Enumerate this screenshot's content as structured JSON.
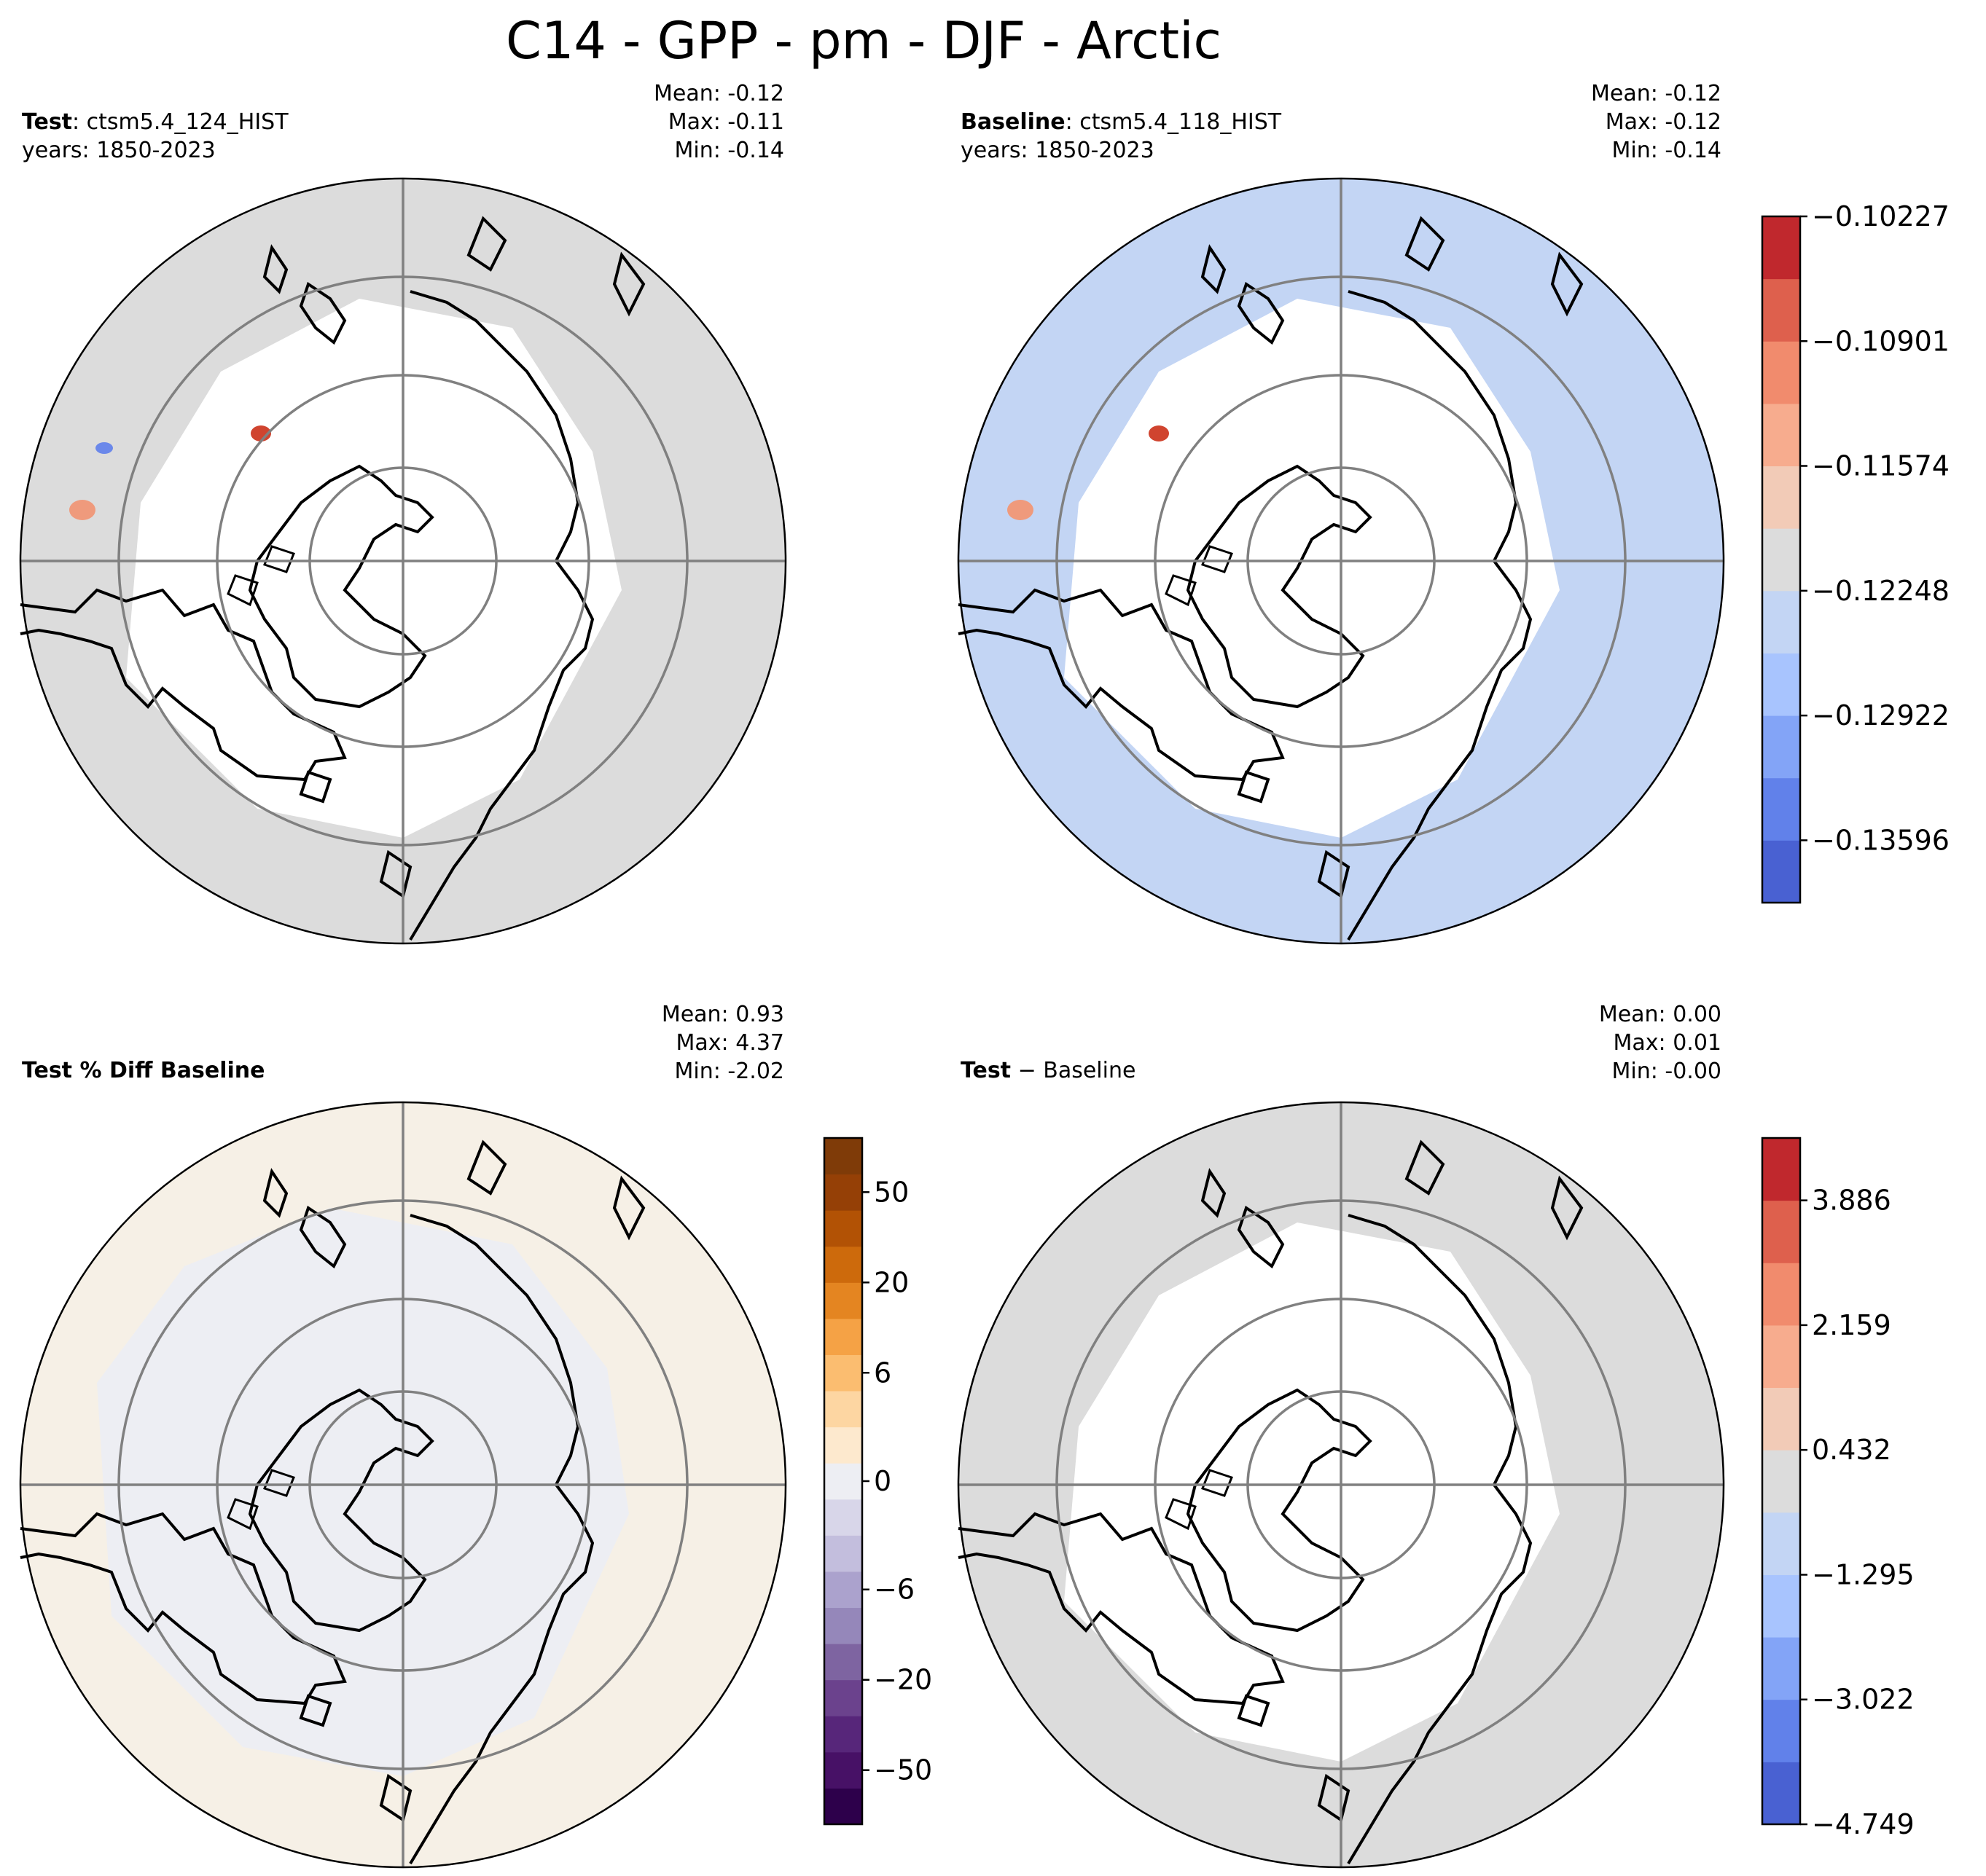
{
  "title": "C14 - GPP - pm - DJF - Arctic",
  "panels": [
    {
      "id": "test",
      "label_bold": "Test",
      "label_rest": ": ctsm5.4_124_HIST",
      "years": "years: 1850-2023",
      "stats": [
        "Mean: -0.12",
        "Max: -0.11",
        "Min: -0.14"
      ],
      "fill": "#dcdcdc"
    },
    {
      "id": "baseline",
      "label_bold": "Baseline",
      "label_rest": ": ctsm5.4_118_HIST",
      "years": "years: 1850-2023",
      "stats": [
        "Mean: -0.12",
        "Max: -0.12",
        "Min: -0.14"
      ],
      "fill": "#c3d5f4"
    },
    {
      "id": "pctdiff",
      "label_bold": "Test % Diff Baseline",
      "label_rest": "",
      "years": "",
      "stats": [
        "Mean:  0.93",
        "Max:  4.37",
        "Min: -2.02"
      ],
      "fill": "#f6f0e6",
      "inner_fill": "#edeef3"
    },
    {
      "id": "diff",
      "label_bold": "Test",
      "label_rest": " − Baseline",
      "years": "",
      "stats": [
        "Mean:  0.00",
        "Max:  0.01",
        "Min: -0.00"
      ],
      "fill": "#dcdcdc"
    }
  ],
  "colorbars": [
    {
      "id": "cb-top",
      "colors": [
        "#4961d2",
        "#6181ea",
        "#83a4f7",
        "#a8c4fe",
        "#c3d5f4",
        "#dcdcdc",
        "#f2cbb7",
        "#f7ac8e",
        "#f18b6d",
        "#de604d",
        "#c0282d"
      ],
      "tick_labels": [
        "−0.10227",
        "−0.10901",
        "−0.11574",
        "−0.12248",
        "−0.12922",
        "−0.13596"
      ],
      "tick_fracs": [
        1.0,
        0.8182,
        0.6364,
        0.4545,
        0.2727,
        0.0909
      ]
    },
    {
      "id": "cb-pct",
      "colors": [
        "#2d004b",
        "#471166",
        "#57267a",
        "#6b428d",
        "#7e64a1",
        "#9587ba",
        "#aba2cd",
        "#c3bedd",
        "#d8d6e9",
        "#edeef3",
        "#fde9ce",
        "#fdd6a2",
        "#fbbd70",
        "#f5a245",
        "#e48521",
        "#cd6a0c",
        "#b25205",
        "#954006",
        "#7f3b08"
      ],
      "tick_labels": [
        "50",
        "20",
        "6",
        "0",
        "−6",
        "−20",
        "−50"
      ],
      "tick_fracs": [
        0.9211,
        0.7895,
        0.6579,
        0.5,
        0.3421,
        0.2105,
        0.0789
      ]
    },
    {
      "id": "cb-diff",
      "colors": [
        "#4961d2",
        "#6181ea",
        "#83a4f7",
        "#a8c4fe",
        "#c3d5f4",
        "#dcdcdc",
        "#f2cbb7",
        "#f7ac8e",
        "#f18b6d",
        "#de604d",
        "#c0282d"
      ],
      "tick_labels": [
        "3.886",
        "2.159",
        "0.432",
        "−1.295",
        "−3.022",
        "−4.749"
      ],
      "tick_fracs": [
        0.9091,
        0.7273,
        0.5455,
        0.3636,
        0.1818,
        0.0
      ]
    }
  ]
}
